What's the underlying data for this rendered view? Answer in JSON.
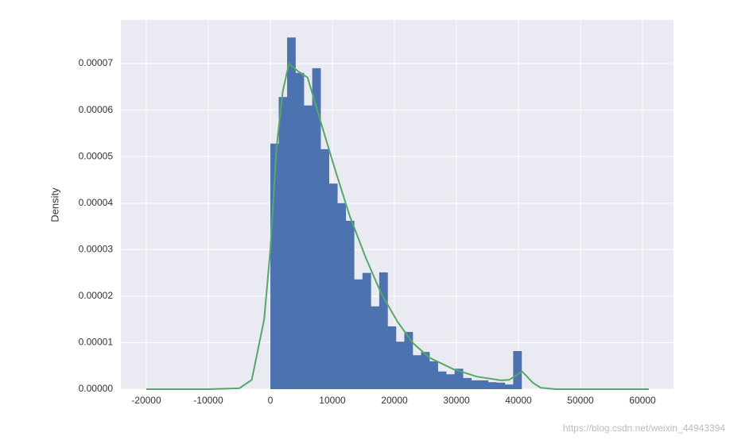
{
  "chart_data": {
    "type": "histogram",
    "ylabel": "Density",
    "bins": [
      0,
      1350,
      2700,
      4050,
      5400,
      6750,
      8100,
      9450,
      10800,
      12150,
      13500,
      14850,
      16200,
      17550,
      18900,
      20250,
      21600,
      22950,
      24300,
      25650,
      27000,
      28350,
      29700,
      31050,
      32400,
      33750,
      35100,
      36450,
      37800,
      39150,
      40500
    ],
    "values": [
      5.28e-05,
      6.28e-05,
      7.56e-05,
      6.8e-05,
      6.1e-05,
      6.9e-05,
      5.16e-05,
      4.42e-05,
      4e-05,
      3.62e-05,
      2.36e-05,
      2.5e-05,
      1.78e-05,
      2.51e-05,
      1.35e-05,
      1.02e-05,
      1.23e-05,
      7.3e-06,
      8e-06,
      6e-06,
      3.8e-06,
      3.2e-06,
      4.4e-06,
      2.4e-06,
      1.9e-06,
      1.9e-06,
      1.5e-06,
      1.4e-06,
      1e-06,
      8.2e-06
    ],
    "color": "#4c72b0",
    "kde": {
      "color": "#55a868",
      "x": [
        -20000,
        -10000,
        -5000,
        -3000,
        -1000,
        0,
        1000,
        2000,
        3000,
        4500,
        6000,
        8000,
        10250,
        12800,
        15400,
        17900,
        20500,
        23000,
        25600,
        29500,
        33300,
        37200,
        38500,
        40600,
        42300,
        43600,
        46000,
        61000
      ],
      "values": [
        0,
        0,
        2e-07,
        2e-06,
        1.5e-05,
        3e-05,
        5.2e-05,
        6.4e-05,
        7e-05,
        6.83e-05,
        6.7e-05,
        5.8e-05,
        4.8e-05,
        3.72e-05,
        2.82e-05,
        2.05e-05,
        1.45e-05,
        9.9e-06,
        6.8e-06,
        4.3e-06,
        2.7e-06,
        1.9e-06,
        2e-06,
        3.8e-06,
        1.4e-06,
        3e-07,
        0,
        0
      ]
    },
    "xlim": [
      -24100,
      65000
    ],
    "ylim": [
      0,
      7.94e-05
    ],
    "xticks": [
      -20000,
      -10000,
      0,
      10000,
      20000,
      30000,
      40000,
      50000,
      60000
    ],
    "yticks": [
      {
        "value": 0,
        "label": "0.00000"
      },
      {
        "value": 1e-05,
        "label": "0.00001"
      },
      {
        "value": 2e-05,
        "label": "0.00002"
      },
      {
        "value": 3e-05,
        "label": "0.00003"
      },
      {
        "value": 4e-05,
        "label": "0.00004"
      },
      {
        "value": 5e-05,
        "label": "0.00005"
      },
      {
        "value": 6e-05,
        "label": "0.00006"
      },
      {
        "value": 7e-05,
        "label": "0.00007"
      }
    ],
    "grid": true,
    "watermark": "https://blog.csdn.net/weixin_44943394"
  }
}
